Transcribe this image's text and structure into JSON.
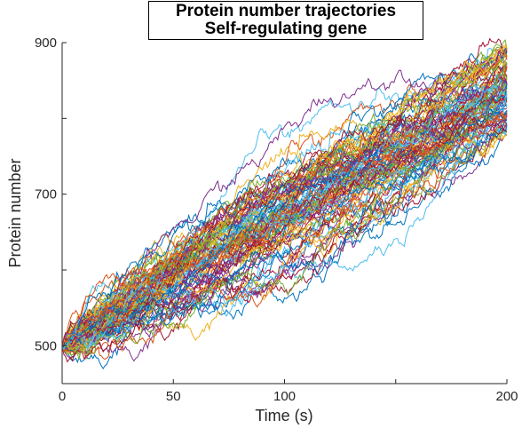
{
  "chart_data": {
    "type": "line",
    "title": [
      "Protein number trajectories",
      "Self-regulating gene"
    ],
    "xlabel": "Time (s)",
    "ylabel": "Protein number",
    "xlim": [
      0,
      200
    ],
    "ylim": [
      450,
      900
    ],
    "x_ticks": [
      0,
      50,
      100,
      150,
      200
    ],
    "x_tick_labels": [
      "0",
      "50",
      "100",
      "",
      "200"
    ],
    "y_ticks": [
      500,
      600,
      700,
      800,
      900
    ],
    "y_tick_labels": [
      "500",
      "",
      "700",
      "",
      "900"
    ],
    "grid": false,
    "legend": "none",
    "series_count": 100,
    "start_value": 500,
    "end_value_range": [
      775,
      895
    ],
    "series_colors": [
      "#0072BD",
      "#D95319",
      "#EDB120",
      "#7E2F8E",
      "#77AC30",
      "#4DBEEE",
      "#A2142F"
    ]
  }
}
